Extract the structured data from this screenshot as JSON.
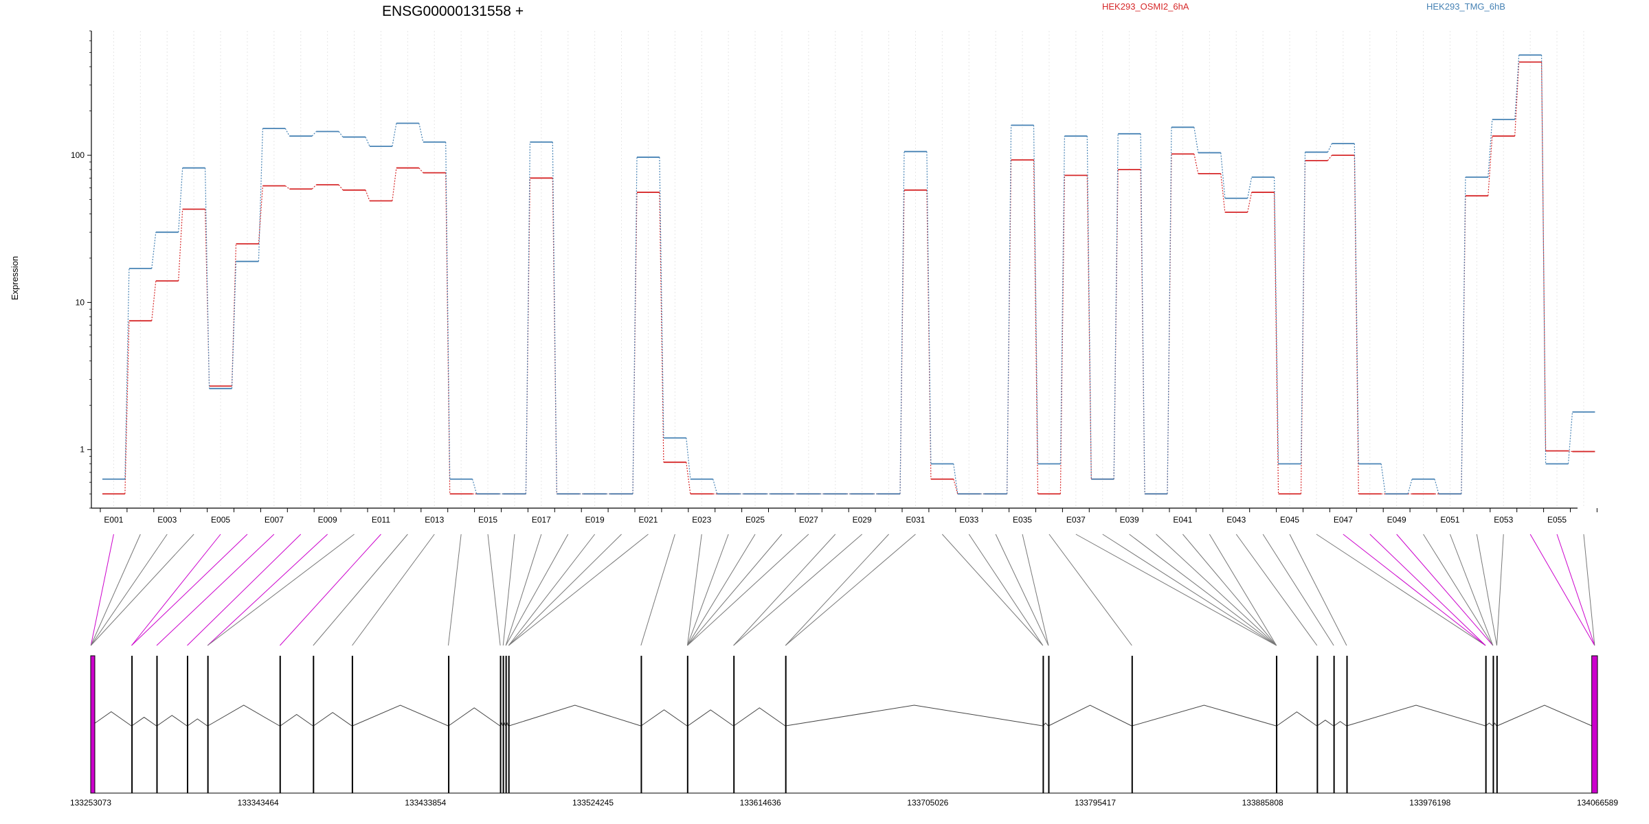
{
  "chart_data": {
    "type": "line",
    "title": "ENSG00000131558 +",
    "ylabel": "Expression",
    "yscale": "log",
    "ylim": [
      0.4,
      700
    ],
    "yticks": [
      {
        "value": 1,
        "label": "1"
      },
      {
        "value": 10,
        "label": "10"
      },
      {
        "value": 100,
        "label": "100"
      }
    ],
    "categories": [
      "E001",
      "E002",
      "E003",
      "E004",
      "E005",
      "E006",
      "E007",
      "E008",
      "E009",
      "E010",
      "E011",
      "E012",
      "E013",
      "E014",
      "E015",
      "E016",
      "E017",
      "E018",
      "E019",
      "E020",
      "E021",
      "E022",
      "E023",
      "E024",
      "E025",
      "E026",
      "E027",
      "E028",
      "E029",
      "E030",
      "E031",
      "E032",
      "E033",
      "E034",
      "E035",
      "E036",
      "E037",
      "E038",
      "E039",
      "E040",
      "E041",
      "E042",
      "E043",
      "E044",
      "E045",
      "E046",
      "E047",
      "E048",
      "E049",
      "E050",
      "E051",
      "E052",
      "E053",
      "E054",
      "E055",
      "E056"
    ],
    "shown_category_labels": [
      "E001",
      "E003",
      "E005",
      "E007",
      "E009",
      "E011",
      "E013",
      "E015",
      "E017",
      "E019",
      "E021",
      "E023",
      "E025",
      "E027",
      "E029",
      "E031",
      "E033",
      "E035",
      "E037",
      "E039",
      "E041",
      "E043",
      "E045",
      "E047",
      "E049",
      "E051",
      "E053",
      "E055"
    ],
    "series": [
      {
        "name": "HEK293_OSMI2_6hA",
        "color": "#d62728",
        "values": [
          0.5,
          7.5,
          14,
          43,
          2.7,
          25,
          62,
          59,
          63,
          58,
          49,
          82,
          76,
          0.5,
          0.5,
          0.5,
          70,
          0.5,
          0.5,
          0.5,
          56,
          0.82,
          0.5,
          0.5,
          0.5,
          0.5,
          0.5,
          0.5,
          0.5,
          0.5,
          58,
          0.63,
          0.5,
          0.5,
          93,
          0.5,
          73,
          0.63,
          80,
          0.5,
          102,
          75,
          41,
          56,
          0.5,
          92,
          100,
          0.5,
          0.5,
          0.5,
          0.5,
          53,
          135,
          430,
          0.98,
          0.97
        ]
      },
      {
        "name": "HEK293_TMG_6hB",
        "color": "#4682b4",
        "values": [
          0.63,
          17,
          30,
          82,
          2.6,
          19,
          152,
          135,
          145,
          133,
          115,
          165,
          123,
          0.63,
          0.5,
          0.5,
          123,
          0.5,
          0.5,
          0.5,
          97,
          1.2,
          0.63,
          0.5,
          0.5,
          0.5,
          0.5,
          0.5,
          0.5,
          0.5,
          106,
          0.8,
          0.5,
          0.5,
          160,
          0.8,
          135,
          0.63,
          140,
          0.5,
          155,
          104,
          51,
          71,
          0.8,
          105,
          120,
          0.8,
          0.5,
          0.63,
          0.5,
          71,
          175,
          480,
          0.8,
          1.8
        ]
      }
    ],
    "genomic_axis": {
      "tick_labels": [
        "133253073",
        "133343464",
        "133433854",
        "133524245",
        "133614636",
        "133705026",
        "133795417",
        "133885808",
        "133976198",
        "134066589"
      ],
      "start": 133253073,
      "end": 134066589,
      "exons": [
        {
          "start": 133253073,
          "end": 133253300,
          "kind": "highlight"
        },
        {
          "start": 133275000,
          "end": 133275300,
          "kind": "normal"
        },
        {
          "start": 133288500,
          "end": 133288900,
          "kind": "normal"
        },
        {
          "start": 133305000,
          "end": 133305400,
          "kind": "normal"
        },
        {
          "start": 133316000,
          "end": 133316400,
          "kind": "normal"
        },
        {
          "start": 133355000,
          "end": 133355500,
          "kind": "normal"
        },
        {
          "start": 133373000,
          "end": 133373400,
          "kind": "normal"
        },
        {
          "start": 133394000,
          "end": 133394500,
          "kind": "normal"
        },
        {
          "start": 133446000,
          "end": 133446300,
          "kind": "normal"
        },
        {
          "start": 133474000,
          "end": 133474400,
          "kind": "normal"
        },
        {
          "start": 133475500,
          "end": 133476000,
          "kind": "normal"
        },
        {
          "start": 133477000,
          "end": 133477400,
          "kind": "normal"
        },
        {
          "start": 133478500,
          "end": 133479000,
          "kind": "normal"
        },
        {
          "start": 133550000,
          "end": 133550300,
          "kind": "normal"
        },
        {
          "start": 133575000,
          "end": 133575500,
          "kind": "normal"
        },
        {
          "start": 133600000,
          "end": 133600300,
          "kind": "normal"
        },
        {
          "start": 133628000,
          "end": 133628400,
          "kind": "normal"
        },
        {
          "start": 133767000,
          "end": 133767300,
          "kind": "normal"
        },
        {
          "start": 133770000,
          "end": 133770300,
          "kind": "normal"
        },
        {
          "start": 133815000,
          "end": 133815400,
          "kind": "normal"
        },
        {
          "start": 133893000,
          "end": 133893500,
          "kind": "normal"
        },
        {
          "start": 133915000,
          "end": 133915300,
          "kind": "normal"
        },
        {
          "start": 133924000,
          "end": 133924400,
          "kind": "normal"
        },
        {
          "start": 133931000,
          "end": 133931300,
          "kind": "normal"
        },
        {
          "start": 134006000,
          "end": 134006300,
          "kind": "normal"
        },
        {
          "start": 134010000,
          "end": 134010300,
          "kind": "normal"
        },
        {
          "start": 134012000,
          "end": 134012500,
          "kind": "normal"
        },
        {
          "start": 134063500,
          "end": 134066589,
          "kind": "highlight"
        }
      ],
      "exon_bins": [
        {
          "start": 133253073,
          "end": 133253300,
          "kind": "highlight"
        },
        {
          "start": 133253073,
          "end": 133253300,
          "kind": "normal"
        },
        {
          "start": 133253073,
          "end": 133253300,
          "kind": "normal"
        },
        {
          "start": 133253073,
          "end": 133253300,
          "kind": "normal"
        },
        {
          "start": 133275000,
          "end": 133275300,
          "kind": "highlight"
        },
        {
          "start": 133275000,
          "end": 133275300,
          "kind": "highlight"
        },
        {
          "start": 133288500,
          "end": 133288900,
          "kind": "highlight"
        },
        {
          "start": 133305000,
          "end": 133305400,
          "kind": "highlight"
        },
        {
          "start": 133316000,
          "end": 133316400,
          "kind": "highlight"
        },
        {
          "start": 133316000,
          "end": 133316400,
          "kind": "normal"
        },
        {
          "start": 133355000,
          "end": 133355500,
          "kind": "highlight"
        },
        {
          "start": 133373000,
          "end": 133373400,
          "kind": "normal"
        },
        {
          "start": 133394000,
          "end": 133394500,
          "kind": "normal"
        },
        {
          "start": 133446000,
          "end": 133446300,
          "kind": "normal"
        },
        {
          "start": 133474000,
          "end": 133474400,
          "kind": "normal"
        },
        {
          "start": 133475500,
          "end": 133476000,
          "kind": "normal"
        },
        {
          "start": 133477000,
          "end": 133477400,
          "kind": "normal"
        },
        {
          "start": 133477000,
          "end": 133477400,
          "kind": "normal"
        },
        {
          "start": 133478500,
          "end": 133479000,
          "kind": "normal"
        },
        {
          "start": 133478500,
          "end": 133479000,
          "kind": "normal"
        },
        {
          "start": 133478500,
          "end": 133479000,
          "kind": "normal"
        },
        {
          "start": 133550000,
          "end": 133550300,
          "kind": "normal"
        },
        {
          "start": 133575000,
          "end": 133575500,
          "kind": "normal"
        },
        {
          "start": 133575000,
          "end": 133575500,
          "kind": "normal"
        },
        {
          "start": 133575000,
          "end": 133575500,
          "kind": "normal"
        },
        {
          "start": 133575000,
          "end": 133575500,
          "kind": "normal"
        },
        {
          "start": 133575000,
          "end": 133575500,
          "kind": "normal"
        },
        {
          "start": 133600000,
          "end": 133600300,
          "kind": "normal"
        },
        {
          "start": 133600000,
          "end": 133600300,
          "kind": "normal"
        },
        {
          "start": 133628000,
          "end": 133628400,
          "kind": "normal"
        },
        {
          "start": 133628000,
          "end": 133628400,
          "kind": "normal"
        },
        {
          "start": 133767000,
          "end": 133767300,
          "kind": "normal"
        },
        {
          "start": 133767000,
          "end": 133767300,
          "kind": "normal"
        },
        {
          "start": 133770000,
          "end": 133770300,
          "kind": "normal"
        },
        {
          "start": 133770000,
          "end": 133770300,
          "kind": "normal"
        },
        {
          "start": 133815000,
          "end": 133815400,
          "kind": "normal"
        },
        {
          "start": 133893000,
          "end": 133893500,
          "kind": "normal"
        },
        {
          "start": 133893000,
          "end": 133893500,
          "kind": "normal"
        },
        {
          "start": 133893000,
          "end": 133893500,
          "kind": "normal"
        },
        {
          "start": 133893000,
          "end": 133893500,
          "kind": "normal"
        },
        {
          "start": 133893000,
          "end": 133893500,
          "kind": "normal"
        },
        {
          "start": 133893000,
          "end": 133893500,
          "kind": "normal"
        },
        {
          "start": 133915000,
          "end": 133915300,
          "kind": "normal"
        },
        {
          "start": 133924000,
          "end": 133924400,
          "kind": "normal"
        },
        {
          "start": 133931000,
          "end": 133931300,
          "kind": "normal"
        },
        {
          "start": 134006000,
          "end": 134006300,
          "kind": "normal"
        },
        {
          "start": 134006000,
          "end": 134006300,
          "kind": "highlight"
        },
        {
          "start": 134006000,
          "end": 134006300,
          "kind": "highlight"
        },
        {
          "start": 134010000,
          "end": 134010300,
          "kind": "highlight"
        },
        {
          "start": 134010000,
          "end": 134010300,
          "kind": "normal"
        },
        {
          "start": 134010000,
          "end": 134010300,
          "kind": "normal"
        },
        {
          "start": 134012000,
          "end": 134012500,
          "kind": "normal"
        },
        {
          "start": 134012000,
          "end": 134012500,
          "kind": "normal"
        },
        {
          "start": 134063500,
          "end": 134066589,
          "kind": "highlight"
        },
        {
          "start": 134063500,
          "end": 134066589,
          "kind": "highlight"
        },
        {
          "start": 134063500,
          "end": 134066589,
          "kind": "normal"
        }
      ]
    },
    "colors": {
      "highlight": "#cc00cc",
      "connector": "#777777",
      "gridline": "#e6e6e6"
    }
  }
}
